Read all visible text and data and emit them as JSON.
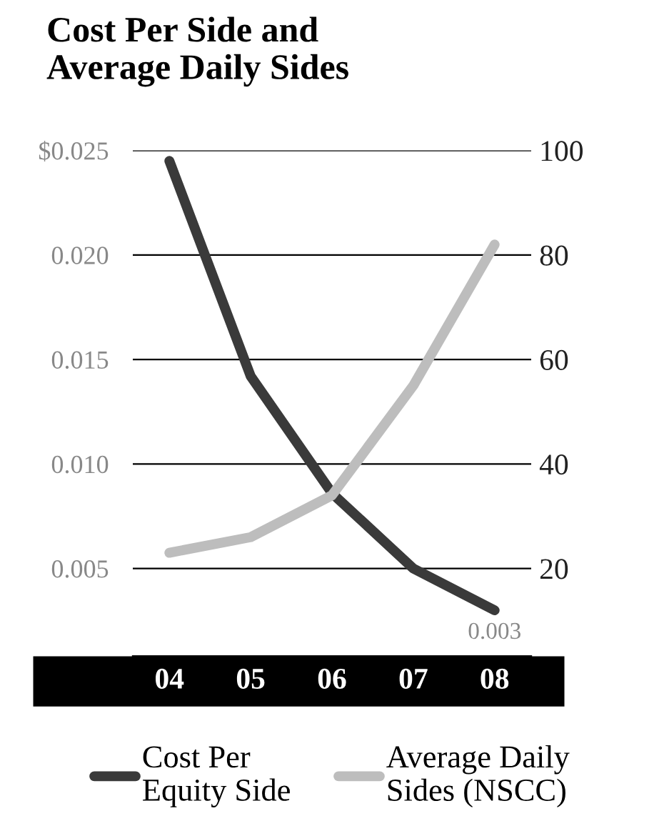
{
  "chart_data": {
    "type": "line",
    "title": "Cost Per Side and\nAverage Daily Sides",
    "categories": [
      "04",
      "05",
      "06",
      "07",
      "08"
    ],
    "series": [
      {
        "name": "Cost Per\nEquity Side",
        "color": "#3a3a3a",
        "values": [
          0.0245,
          0.0142,
          0.0086,
          0.005,
          0.003
        ]
      },
      {
        "name": "Average Daily\nSides (NSCC)",
        "color": "#bdbdbd",
        "axis": "y2",
        "values": [
          23,
          26,
          34,
          55,
          82
        ]
      }
    ],
    "ylim": [
      0.0008,
      0.025
    ],
    "yticks": [
      {
        "value": 0.005,
        "label": "0.005"
      },
      {
        "value": 0.01,
        "label": "0.010"
      },
      {
        "value": 0.015,
        "label": "0.015"
      },
      {
        "value": 0.02,
        "label": "0.020"
      },
      {
        "value": 0.025,
        "label": "$0.025"
      }
    ],
    "y2lim": [
      3.2,
      100
    ],
    "y2ticks": [
      20,
      40,
      60,
      80,
      100
    ],
    "annotations": [
      {
        "text": "0.003",
        "x": "08",
        "y": 0.003
      }
    ],
    "grid": "y",
    "legend": "bottom",
    "marker": "none",
    "line_style": "solid"
  }
}
